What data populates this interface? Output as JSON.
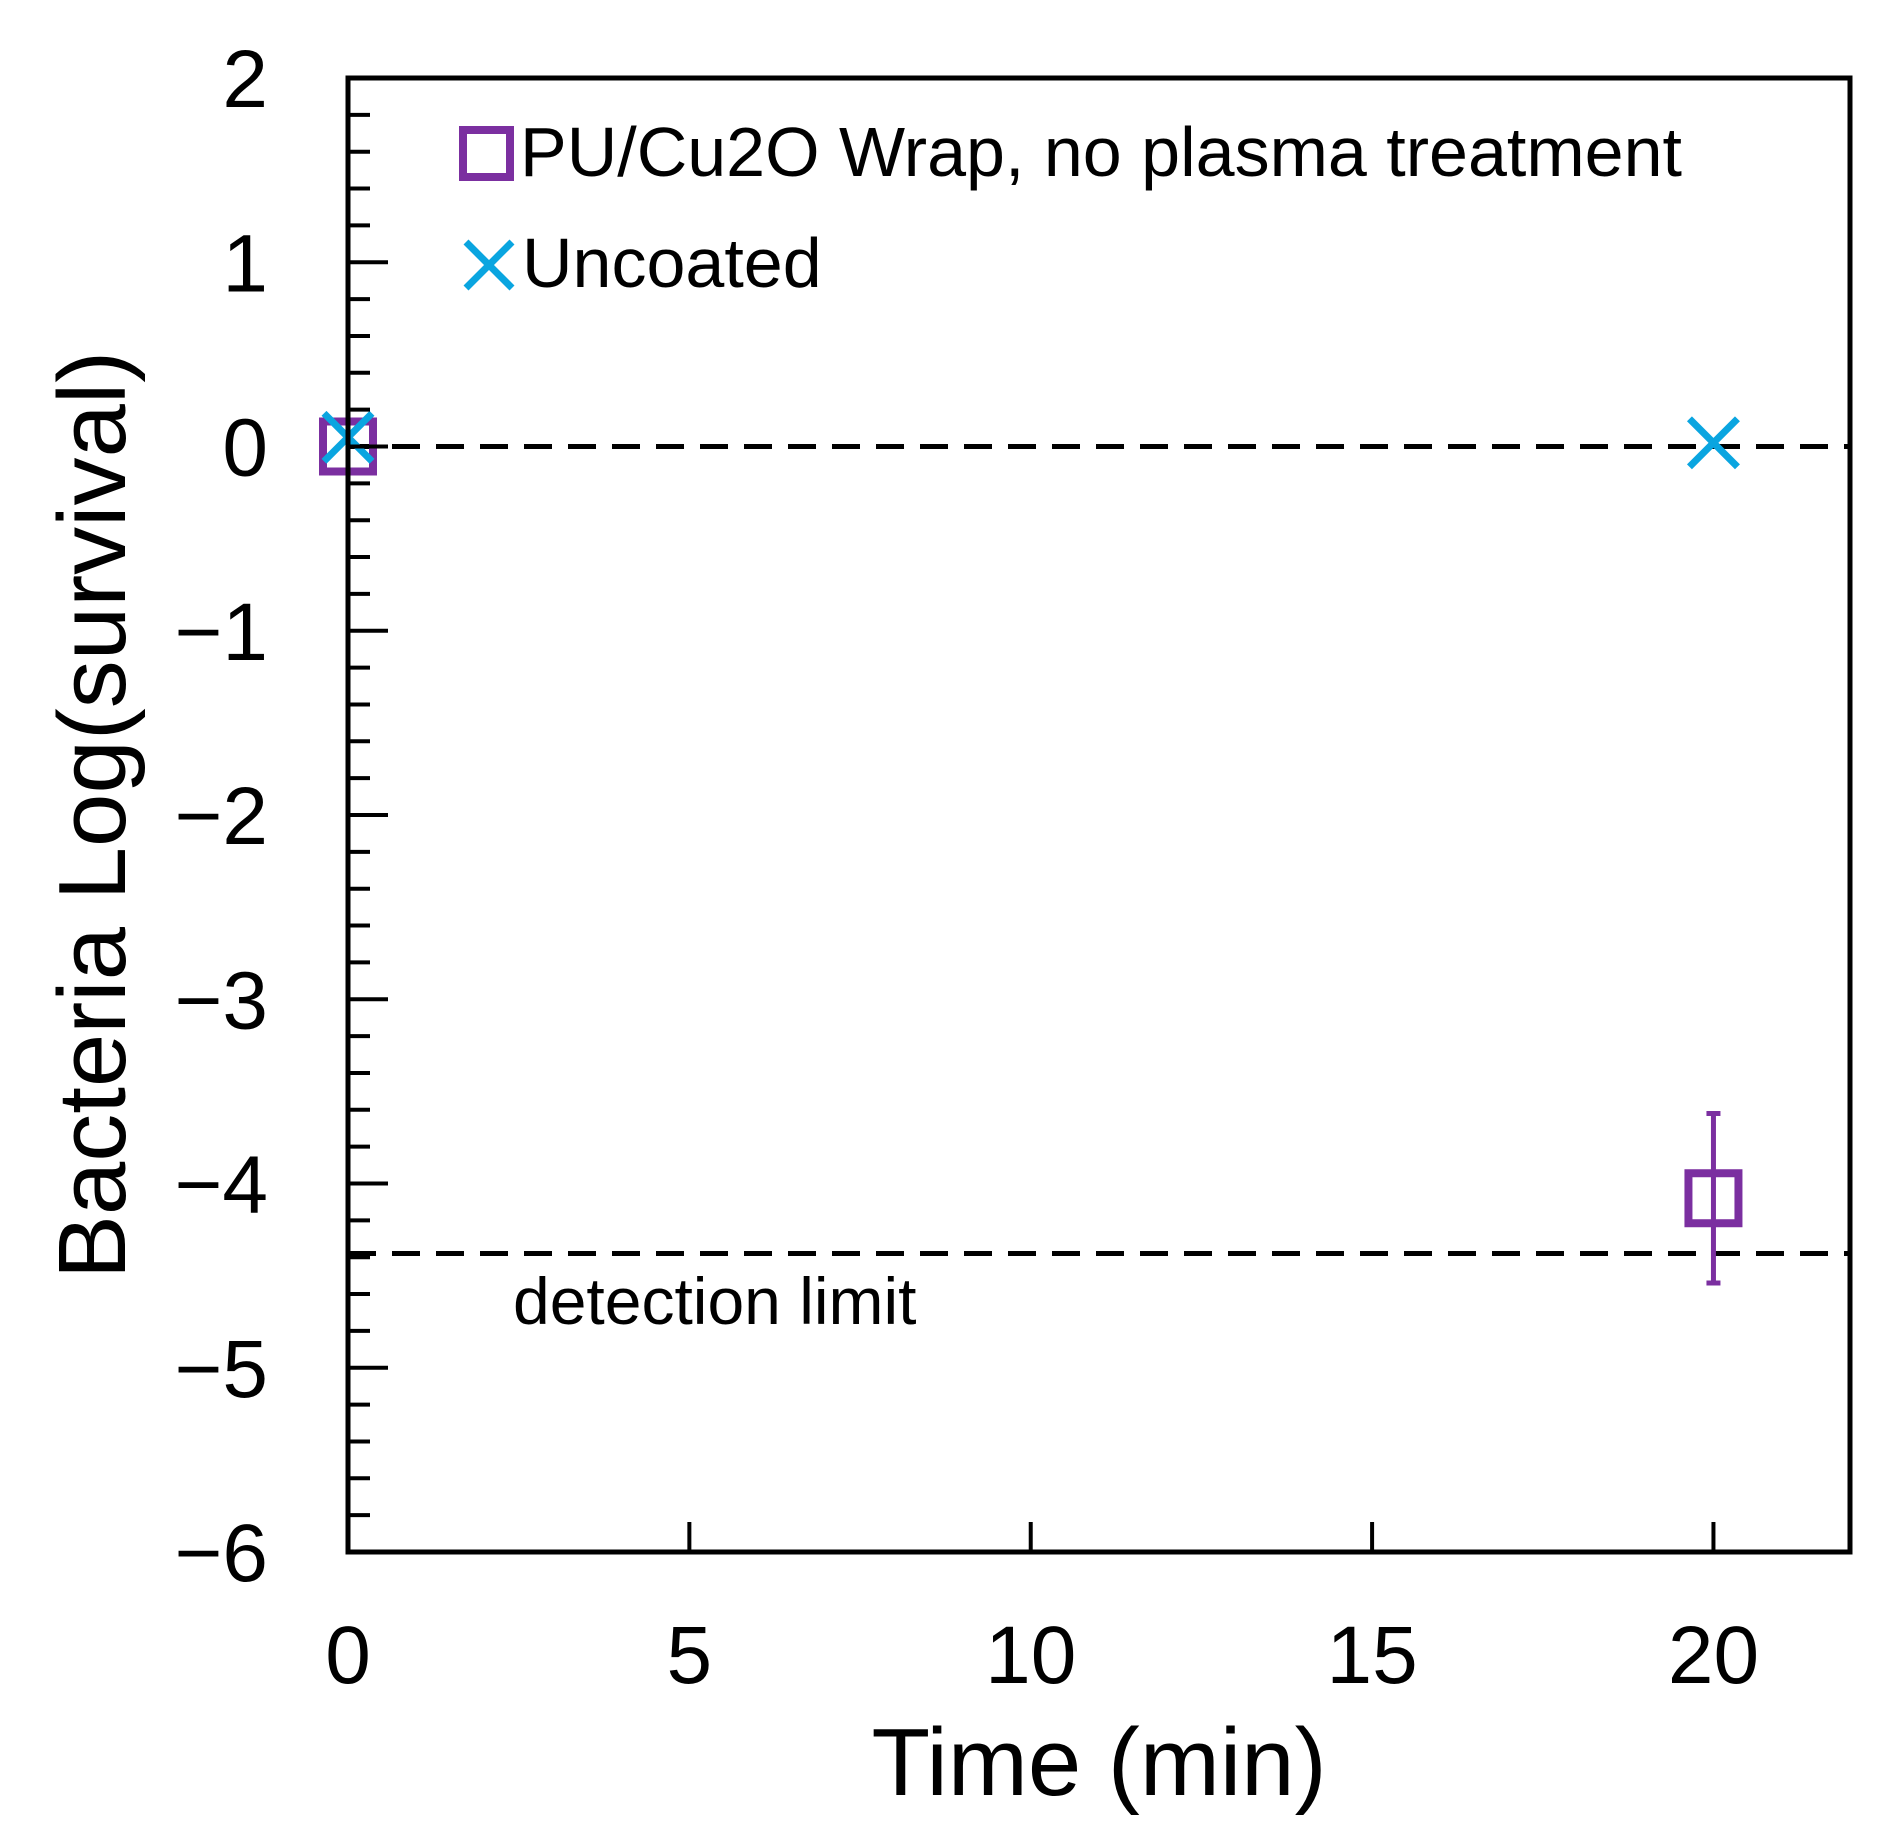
{
  "chart_data": {
    "type": "scatter",
    "title": "",
    "xlabel": "Time (min)",
    "ylabel": "Bacteria Log(survival)",
    "xlim": [
      0,
      22
    ],
    "ylim": [
      -6,
      2
    ],
    "xticks": [
      0,
      5,
      10,
      15,
      20
    ],
    "yticks": [
      2,
      1,
      0,
      -1,
      -2,
      -3,
      -4,
      -5,
      -6
    ],
    "xtick_labels": [
      "0",
      "5",
      "10",
      "15",
      "20"
    ],
    "ytick_labels": [
      "2",
      "1",
      "0",
      "−1",
      "−2",
      "−3",
      "−4",
      "−5",
      "−6"
    ],
    "y_minor_step": 0.2,
    "grid": false,
    "legend_position": "top-left",
    "series": [
      {
        "name": "PU/Cu2O Wrap, no plasma treatment",
        "marker": "square",
        "color": "#7B2FA0",
        "points": [
          {
            "x": 0,
            "y": 0,
            "err": 0
          },
          {
            "x": 20,
            "y": -4.08,
            "err": 0.46
          }
        ]
      },
      {
        "name": "Uncoated",
        "marker": "x",
        "color": "#0AA5E0",
        "points": [
          {
            "x": 0,
            "y": 0.05
          },
          {
            "x": 20,
            "y": 0.02
          }
        ]
      }
    ],
    "reference_lines": [
      {
        "y": 0,
        "style": "dashed",
        "label": ""
      },
      {
        "y": -4.38,
        "style": "dashed",
        "label": "detection limit"
      }
    ]
  }
}
